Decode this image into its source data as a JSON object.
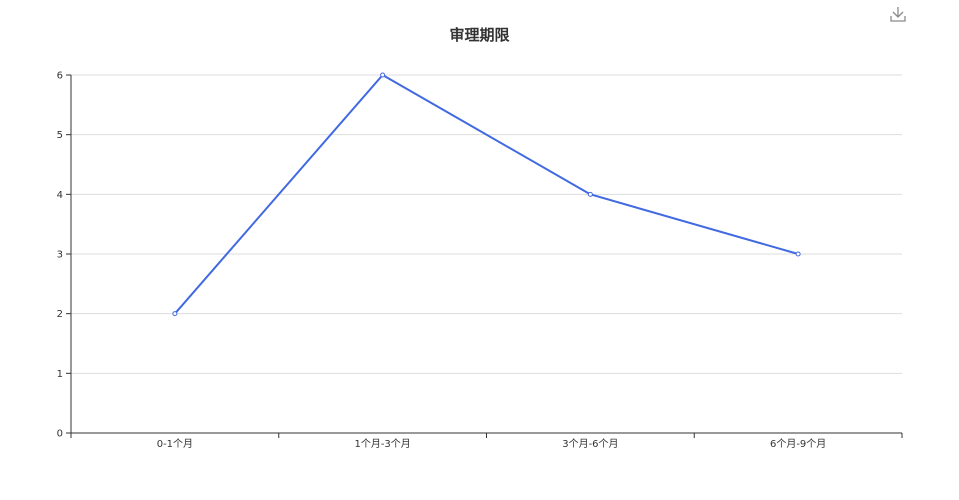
{
  "toolbox": {
    "download_icon": "download-icon"
  },
  "colors": {
    "line": "#4169e1",
    "grid": "#dddddd",
    "axis": "#333333"
  },
  "chart_data": {
    "type": "line",
    "title": "审理期限",
    "xlabel": "",
    "ylabel": "",
    "categories": [
      "0-1个月",
      "1个月-3个月",
      "3个月-6个月",
      "6个月-9个月"
    ],
    "series": [
      {
        "values": [
          2,
          6,
          4,
          3
        ]
      }
    ],
    "ylim": [
      0,
      6
    ],
    "yticks": [
      0,
      1,
      2,
      3,
      4,
      5,
      6
    ],
    "grid": true,
    "legend": "none"
  }
}
